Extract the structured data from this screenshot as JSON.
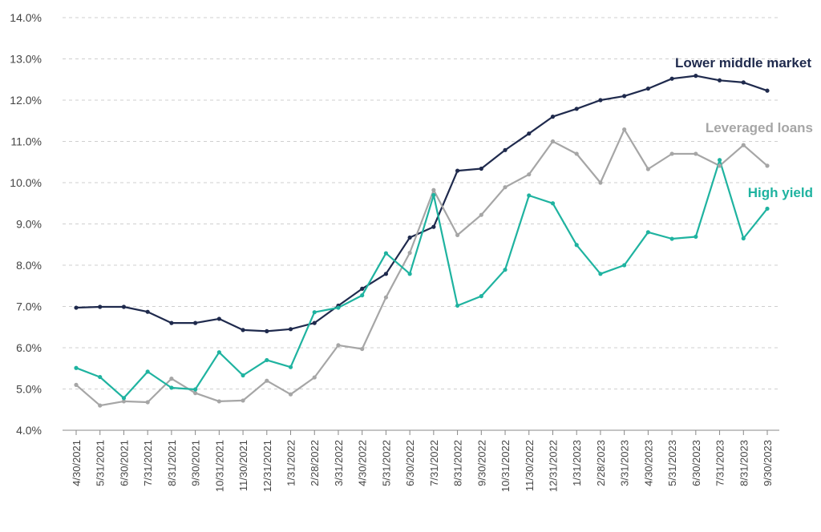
{
  "chart_data": {
    "type": "line",
    "title": "",
    "xlabel": "",
    "ylabel": "",
    "ylim": [
      4.0,
      14.0
    ],
    "yticks": [
      4.0,
      5.0,
      6.0,
      7.0,
      8.0,
      9.0,
      10.0,
      11.0,
      12.0,
      13.0,
      14.0
    ],
    "y_format": "percent_1dp",
    "grid": true,
    "legend": "inline-labels",
    "categories": [
      "4/30/2021",
      "5/31/2021",
      "6/30/2021",
      "7/31/2021",
      "8/31/2021",
      "9/30/2021",
      "10/31/2021",
      "11/30/2021",
      "12/31/2021",
      "1/31/2022",
      "2/28/2022",
      "3/31/2022",
      "4/30/2022",
      "5/31/2022",
      "6/30/2022",
      "7/31/2022",
      "8/31/2022",
      "9/30/2022",
      "10/31/2022",
      "11/30/2022",
      "12/31/2022",
      "1/31/2023",
      "2/28/2023",
      "3/31/2023",
      "4/30/2023",
      "5/31/2023",
      "6/30/2023",
      "7/31/2023",
      "8/31/2023",
      "9/30/2023"
    ],
    "series": [
      {
        "name": "Lower middle market",
        "color": "#1f2a4d",
        "values": [
          6.97,
          6.99,
          6.99,
          6.87,
          6.6,
          6.6,
          6.7,
          6.43,
          6.4,
          6.45,
          6.6,
          7.02,
          7.43,
          7.79,
          8.67,
          8.93,
          10.29,
          10.34,
          10.79,
          11.19,
          11.6,
          11.79,
          12.0,
          12.1,
          12.28,
          12.52,
          12.59,
          12.48,
          12.43,
          12.23
        ]
      },
      {
        "name": "Leveraged loans",
        "color": "#a6a6a6",
        "values": [
          5.1,
          4.6,
          4.7,
          4.68,
          5.25,
          4.9,
          4.7,
          4.72,
          5.2,
          4.87,
          5.28,
          6.06,
          5.97,
          7.22,
          8.3,
          9.82,
          8.73,
          9.22,
          9.89,
          10.2,
          11.0,
          10.7,
          10.0,
          11.29,
          10.33,
          10.7,
          10.7,
          10.41,
          10.91,
          10.41
        ]
      },
      {
        "name": "High yield",
        "color": "#1fb3a0",
        "values": [
          5.51,
          5.29,
          4.78,
          5.42,
          5.03,
          4.99,
          5.89,
          5.33,
          5.7,
          5.53,
          6.86,
          6.97,
          7.27,
          8.29,
          7.79,
          9.7,
          7.02,
          7.25,
          7.89,
          9.69,
          9.5,
          8.49,
          7.79,
          8.0,
          8.8,
          8.64,
          8.69,
          10.55,
          8.65,
          9.37
        ]
      }
    ],
    "series_labels": [
      {
        "text": "Lower middle market",
        "color": "#1f2a4d"
      },
      {
        "text": "Leveraged loans",
        "color": "#a6a6a6"
      },
      {
        "text": "High yield",
        "color": "#1fb3a0"
      }
    ]
  }
}
